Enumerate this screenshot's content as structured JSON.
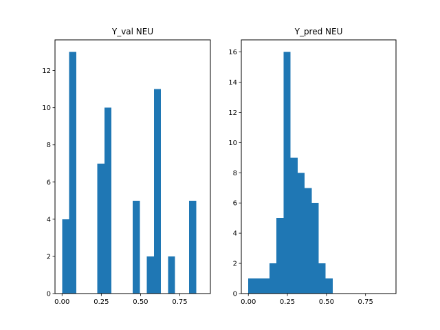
{
  "chart_data": [
    {
      "type": "bar",
      "title": "Y_val NEU",
      "xlabel": "",
      "ylabel": "",
      "xlim": [
        -0.045,
        0.945
      ],
      "ylim": [
        0,
        13.65
      ],
      "xticks": [
        0.0,
        0.25,
        0.5,
        0.75
      ],
      "xtick_labels": [
        "0.00",
        "0.25",
        "0.50",
        "0.75"
      ],
      "yticks": [
        0,
        2,
        4,
        6,
        8,
        10,
        12
      ],
      "yticks_labels": [
        "0",
        "2",
        "4",
        "6",
        "8",
        "10",
        "12"
      ],
      "bin_start": 0.0,
      "bin_width": 0.045,
      "values": [
        4,
        13,
        0,
        0,
        0,
        7,
        10,
        0,
        0,
        0,
        5,
        0,
        2,
        11,
        0,
        2,
        0,
        0,
        5,
        0
      ],
      "color": "#1f77b4",
      "grid": false
    },
    {
      "type": "bar",
      "title": "Y_pred NEU",
      "xlabel": "",
      "ylabel": "",
      "xlim": [
        -0.045,
        0.945
      ],
      "ylim": [
        0,
        16.8
      ],
      "xticks": [
        0.0,
        0.25,
        0.5,
        0.75
      ],
      "xtick_labels": [
        "0.00",
        "0.25",
        "0.50",
        "0.75"
      ],
      "yticks": [
        0,
        2,
        4,
        6,
        8,
        10,
        12,
        14,
        16
      ],
      "yticks_labels": [
        "0",
        "2",
        "4",
        "6",
        "8",
        "10",
        "12",
        "14",
        "16"
      ],
      "bin_start": 0.0,
      "bin_width": 0.045,
      "values": [
        1,
        1,
        1,
        2,
        5,
        16,
        9,
        8,
        7,
        6,
        2,
        1,
        0,
        0,
        0,
        0,
        0,
        0,
        0,
        0
      ],
      "color": "#1f77b4",
      "grid": false
    }
  ]
}
